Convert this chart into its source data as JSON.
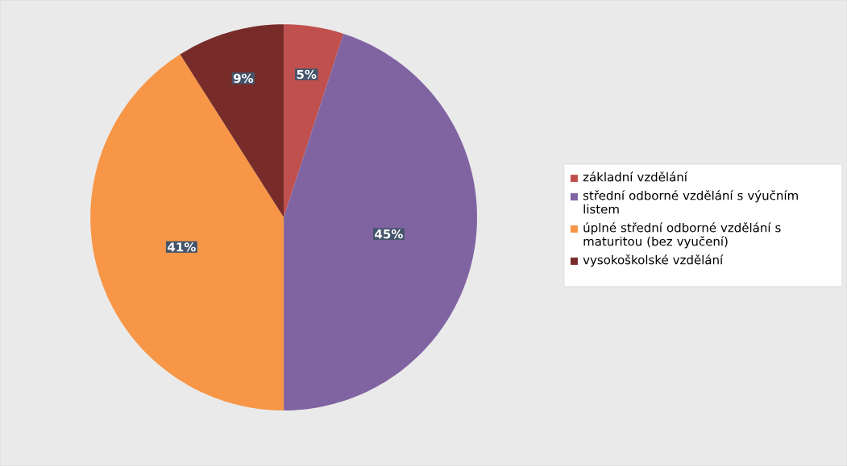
{
  "chart_data": {
    "type": "pie",
    "categories": [
      "základní vzdělání",
      "střední odborné vzdělání s výučním listem",
      "úplné střední odborné vzdělání s maturitou (bez vyučení)",
      "vysokoškolské vzdělání"
    ],
    "values": [
      5,
      45,
      41,
      9
    ],
    "value_labels": [
      "5%",
      "45%",
      "41%",
      "9%"
    ],
    "colors": [
      "#c0504d",
      "#8064a2",
      "#f79646",
      "#772c2a"
    ],
    "legend": "right"
  }
}
